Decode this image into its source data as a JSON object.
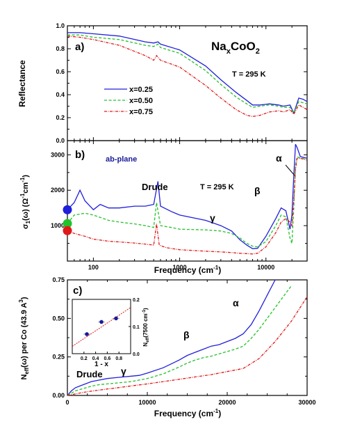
{
  "colors": {
    "x025": "#1f1fdc",
    "x050": "#22c22a",
    "x075": "#e01818",
    "navy": "#1a1a99"
  },
  "chart_data": [
    {
      "id": "a",
      "type": "line",
      "panel_label": "a)",
      "title": "Na_xCoO_2",
      "annotation": "T = 295 K",
      "xscale": "log",
      "xlim": [
        50,
        30000
      ],
      "ylim": [
        0,
        1
      ],
      "ylabel": "Reflectance",
      "yticks": [
        "0.0",
        "0.2",
        "0.4",
        "0.6",
        "0.8",
        "1.0"
      ],
      "legend_position": "center-left",
      "series": [
        {
          "name": "x=0.25",
          "style": "solid",
          "x": [
            50,
            70,
            100,
            200,
            400,
            500,
            560,
            600,
            1000,
            2000,
            3000,
            4500,
            6000,
            7000,
            8500,
            11000,
            14000,
            16000,
            19000,
            21000,
            24000,
            27000,
            30000
          ],
          "y": [
            0.94,
            0.94,
            0.93,
            0.91,
            0.86,
            0.85,
            0.86,
            0.84,
            0.79,
            0.65,
            0.53,
            0.42,
            0.35,
            0.31,
            0.31,
            0.32,
            0.31,
            0.3,
            0.31,
            0.24,
            0.37,
            0.36,
            0.34
          ]
        },
        {
          "name": "x=0.50",
          "style": "dashed",
          "x": [
            50,
            70,
            100,
            200,
            400,
            500,
            560,
            600,
            1000,
            2000,
            3000,
            4500,
            6000,
            7000,
            8500,
            11000,
            14000,
            16000,
            19000,
            21000,
            24000,
            27000,
            30000
          ],
          "y": [
            0.92,
            0.92,
            0.9,
            0.88,
            0.83,
            0.82,
            0.84,
            0.81,
            0.76,
            0.61,
            0.49,
            0.38,
            0.32,
            0.29,
            0.3,
            0.31,
            0.3,
            0.29,
            0.29,
            0.24,
            0.34,
            0.33,
            0.32
          ]
        },
        {
          "name": "x=0.75",
          "style": "dashdot",
          "x": [
            50,
            70,
            100,
            200,
            400,
            500,
            540,
            600,
            1000,
            2000,
            3000,
            4500,
            6000,
            7000,
            8500,
            11000,
            14000,
            16000,
            19000,
            21000,
            24000,
            27000,
            30000
          ],
          "y": [
            0.91,
            0.9,
            0.88,
            0.83,
            0.74,
            0.7,
            0.74,
            0.7,
            0.64,
            0.48,
            0.37,
            0.27,
            0.22,
            0.21,
            0.22,
            0.25,
            0.26,
            0.25,
            0.27,
            0.23,
            0.31,
            0.29,
            0.27
          ]
        }
      ]
    },
    {
      "id": "b",
      "type": "line",
      "panel_label": "b)",
      "annotation_left": "ab-plane",
      "annotation": "T = 295 K",
      "peak_labels": [
        "Drude",
        "γ",
        "β",
        "α"
      ],
      "xscale": "log",
      "xlim": [
        50,
        30000
      ],
      "ylim": [
        0,
        3400
      ],
      "xlabel": "Frequency (cm",
      "xlabel_sup": "-1",
      "xlabel_end": ")",
      "ylabel": "σ₁(ω) (Ω⁻¹cm⁻¹)",
      "xticks": [
        "100",
        "1000",
        "10000"
      ],
      "yticks": [
        "1000",
        "2000",
        "3000"
      ],
      "dc_markers": [
        {
          "series": "x=0.25",
          "y": 1450
        },
        {
          "series": "x=0.50",
          "y": 1060
        },
        {
          "series": "x=0.75",
          "y": 860
        }
      ],
      "series": [
        {
          "name": "x=0.25",
          "style": "solid",
          "x": [
            50,
            60,
            70,
            80,
            100,
            120,
            150,
            200,
            300,
            400,
            500,
            560,
            600,
            800,
            1000,
            2000,
            3000,
            4000,
            5000,
            6000,
            7000,
            8000,
            10000,
            13000,
            15000,
            17000,
            19000,
            20000,
            21000,
            22000,
            23000,
            25000,
            30000
          ],
          "y": [
            1450,
            1650,
            2000,
            1700,
            1450,
            1600,
            1500,
            1500,
            1550,
            1550,
            1600,
            2250,
            1550,
            1400,
            1300,
            1150,
            1000,
            850,
            600,
            450,
            350,
            360,
            700,
            1200,
            1500,
            1420,
            900,
            1300,
            2400,
            3300,
            3200,
            2950,
            2900
          ]
        },
        {
          "name": "x=0.50",
          "style": "dashed",
          "x": [
            50,
            60,
            80,
            100,
            150,
            200,
            300,
            400,
            500,
            540,
            600,
            800,
            1000,
            2000,
            3000,
            4000,
            5000,
            6000,
            7000,
            8000,
            10000,
            13000,
            15000,
            17000,
            19000,
            20000,
            21000,
            22000,
            23000,
            25000,
            30000
          ],
          "y": [
            1060,
            1300,
            1350,
            1300,
            1150,
            1100,
            1050,
            1000,
            950,
            1650,
            1000,
            950,
            900,
            880,
            850,
            780,
            650,
            500,
            420,
            400,
            550,
            1000,
            1300,
            1250,
            650,
            500,
            1500,
            2700,
            2950,
            2900,
            2880
          ]
        },
        {
          "name": "x=0.75",
          "style": "dashdot",
          "x": [
            50,
            60,
            80,
            100,
            150,
            200,
            300,
            400,
            500,
            540,
            580,
            700,
            1000,
            2000,
            3000,
            4000,
            5000,
            6000,
            7000,
            8000,
            10000,
            13000,
            15000,
            17000,
            19000,
            20000,
            21000,
            22000,
            23000,
            25000,
            30000
          ],
          "y": [
            860,
            780,
            700,
            620,
            560,
            540,
            510,
            480,
            450,
            1050,
            450,
            380,
            320,
            280,
            260,
            240,
            220,
            210,
            200,
            220,
            400,
            800,
            1100,
            1200,
            1100,
            1000,
            1700,
            2600,
            2900,
            2900,
            2850
          ]
        }
      ]
    },
    {
      "id": "c",
      "type": "line",
      "panel_label": "c)",
      "peak_labels": [
        "Drude",
        "γ",
        "β",
        "α"
      ],
      "xscale": "linear",
      "xlim": [
        0,
        30000
      ],
      "ylim": [
        0,
        0.75
      ],
      "xlabel": "Frequency (cm",
      "xlabel_sup": "-1",
      "xlabel_end": ")",
      "ylabel": "Nₑₒₒ(ω) per Co (43.9 Å³)",
      "ylabel_main": "N",
      "ylabel_sub": "eff",
      "ylabel_rest": "(ω) per Co (43.9 A",
      "ylabel_sup": "3",
      "ylabel_end": ")",
      "xticks": [
        "0",
        "10000",
        "20000",
        "30000"
      ],
      "yticks": [
        "0.00",
        "0.25",
        "0.50",
        "0.75"
      ],
      "series": [
        {
          "name": "x=0.25",
          "style": "solid",
          "x": [
            0,
            500,
            1000,
            2000,
            3000,
            4000,
            5000,
            6000,
            7000,
            8000,
            9000,
            10000,
            12000,
            14000,
            15000,
            16000,
            17000,
            18000,
            19000,
            20000,
            21000,
            22000,
            23000,
            24000,
            25000,
            26000
          ],
          "y": [
            0,
            0.03,
            0.05,
            0.07,
            0.09,
            0.1,
            0.11,
            0.115,
            0.12,
            0.125,
            0.13,
            0.145,
            0.18,
            0.23,
            0.26,
            0.28,
            0.3,
            0.32,
            0.33,
            0.35,
            0.37,
            0.4,
            0.46,
            0.55,
            0.65,
            0.76
          ]
        },
        {
          "name": "x=0.50",
          "style": "dashed",
          "x": [
            0,
            500,
            1000,
            2000,
            3000,
            4000,
            5000,
            6000,
            7000,
            8000,
            9000,
            10000,
            12000,
            14000,
            15000,
            16000,
            17000,
            18000,
            19000,
            20000,
            21000,
            22000,
            23000,
            24000,
            25000,
            26000,
            27000,
            28000
          ],
          "y": [
            0,
            0.015,
            0.03,
            0.045,
            0.06,
            0.07,
            0.075,
            0.08,
            0.085,
            0.09,
            0.1,
            0.11,
            0.14,
            0.185,
            0.21,
            0.23,
            0.245,
            0.255,
            0.27,
            0.285,
            0.3,
            0.32,
            0.37,
            0.43,
            0.5,
            0.57,
            0.64,
            0.71
          ]
        },
        {
          "name": "x=0.75",
          "style": "dashdot",
          "x": [
            0,
            1000,
            2000,
            3000,
            4000,
            5000,
            6000,
            7000,
            8000,
            10000,
            12000,
            14000,
            16000,
            18000,
            20000,
            22000,
            24000,
            26000,
            28000,
            30000
          ],
          "y": [
            0,
            0.01,
            0.02,
            0.028,
            0.035,
            0.042,
            0.048,
            0.055,
            0.062,
            0.075,
            0.09,
            0.105,
            0.12,
            0.135,
            0.155,
            0.175,
            0.24,
            0.35,
            0.48,
            0.64
          ]
        }
      ],
      "inset": {
        "type": "scatter",
        "xlabel": "1 - x",
        "ylabel": "N",
        "ylabel_sub": "eff",
        "ylabel_rest": "(7500 cm",
        "ylabel_sup": "-1",
        "ylabel_end": ")",
        "xlim": [
          0,
          1
        ],
        "ylim": [
          0,
          0.2
        ],
        "xticks": [
          "0.2",
          "0.4",
          "0.6",
          "0.8"
        ],
        "yticks": [
          "0.0",
          "0.1",
          "0.2"
        ],
        "points": {
          "x": [
            0.25,
            0.5,
            0.75
          ],
          "y": [
            0.072,
            0.117,
            0.13
          ]
        },
        "fit_line": {
          "x": [
            0,
            1
          ],
          "y": [
            0.027,
            0.17
          ]
        }
      }
    }
  ]
}
